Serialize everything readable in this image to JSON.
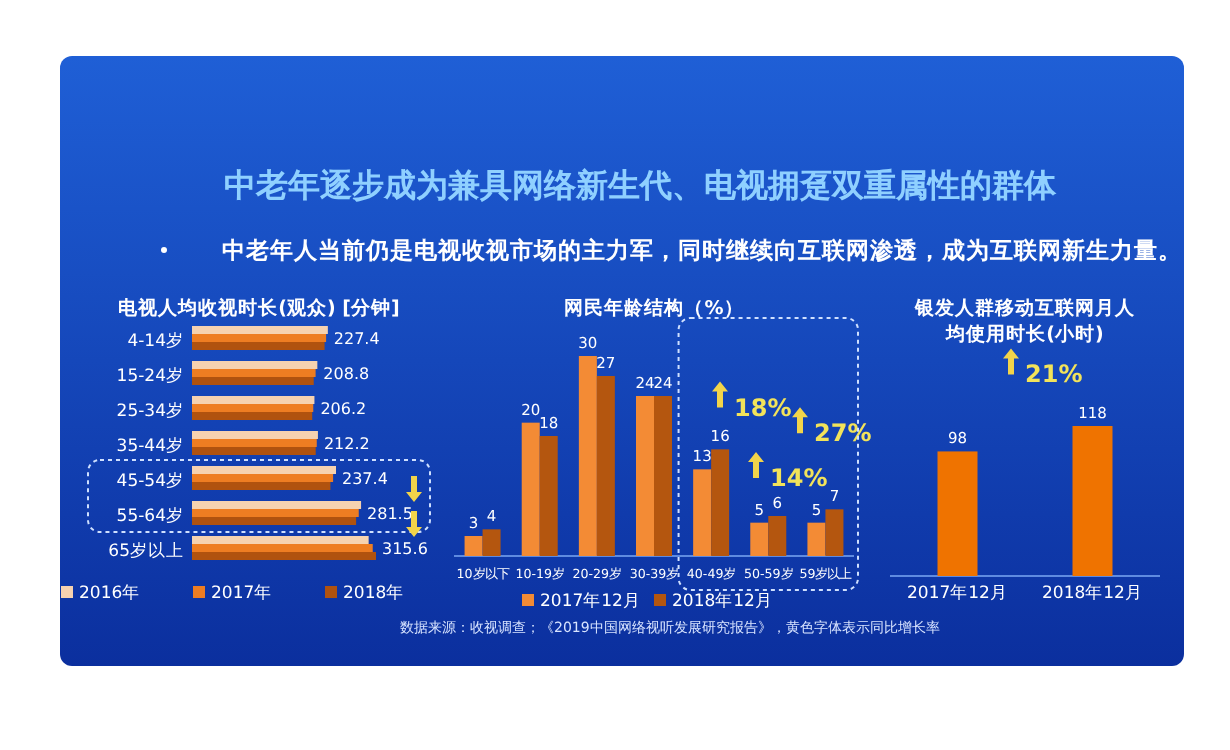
{
  "chart_data": [
    {
      "type": "other",
      "title": "中老年逐步成为兼具网络新生代、电视拥趸双重属性的群体",
      "subtitle": "中老年人当前仍是电视收视市场的主力军，同时继续向互联网渗透，成为互联网新生力量。",
      "annotations": [
        "数据来源：收视调查；《2019中国网络视听发展研究报告》，黄色字体表示同比增长率"
      ]
    },
    {
      "type": "bar",
      "orientation": "horizontal",
      "title": "电视人均收视时长(观众) [分钟]",
      "categories": [
        "4-14岁",
        "15-24岁",
        "25-34岁",
        "35-44岁",
        "45-54岁",
        "55-64岁",
        "65岁以上"
      ],
      "legend": "bottom",
      "series": [
        {
          "name": "2016年",
          "color": "#f6d2b0",
          "values": [
            233,
            215,
            210,
            216,
            247,
            290,
            303
          ]
        },
        {
          "name": "2017年",
          "color": "#ee7d22",
          "values": [
            230,
            212,
            208,
            214,
            242,
            286,
            310
          ]
        },
        {
          "name": "2018年",
          "color": "#b0520f",
          "values": [
            227.4,
            208.8,
            206.2,
            212.2,
            237.4,
            281.5,
            315.6
          ],
          "value_labels": [
            "227.4",
            "208.8",
            "206.2",
            "212.2",
            "237.4",
            "281.5",
            "315.6"
          ]
        }
      ]
    },
    {
      "type": "bar",
      "title": "网民年龄结构（%）",
      "categories": [
        "10岁以下",
        "10-19岁",
        "20-29岁",
        "30-39岁",
        "40-49岁",
        "50-59岁",
        "59岁以上"
      ],
      "legend": "bottom",
      "data_labels": true,
      "series": [
        {
          "name": "2017年12月",
          "color": "#f38b35",
          "values": [
            3,
            20,
            30,
            24,
            13,
            5,
            5
          ]
        },
        {
          "name": "2018年12月",
          "color": "#b4560f",
          "values": [
            4,
            18,
            27,
            24,
            16,
            6,
            7
          ]
        }
      ],
      "annotations": [
        "18%",
        "14%",
        "27%"
      ]
    },
    {
      "type": "bar",
      "title": "银发人群移动互联网月人均使用时长(小时)",
      "categories": [
        "2017年12月",
        "2018年12月"
      ],
      "data_labels": true,
      "series": [
        {
          "color": "#ef7300",
          "values": [
            98,
            118
          ]
        }
      ],
      "annotations": [
        "21%"
      ]
    }
  ]
}
